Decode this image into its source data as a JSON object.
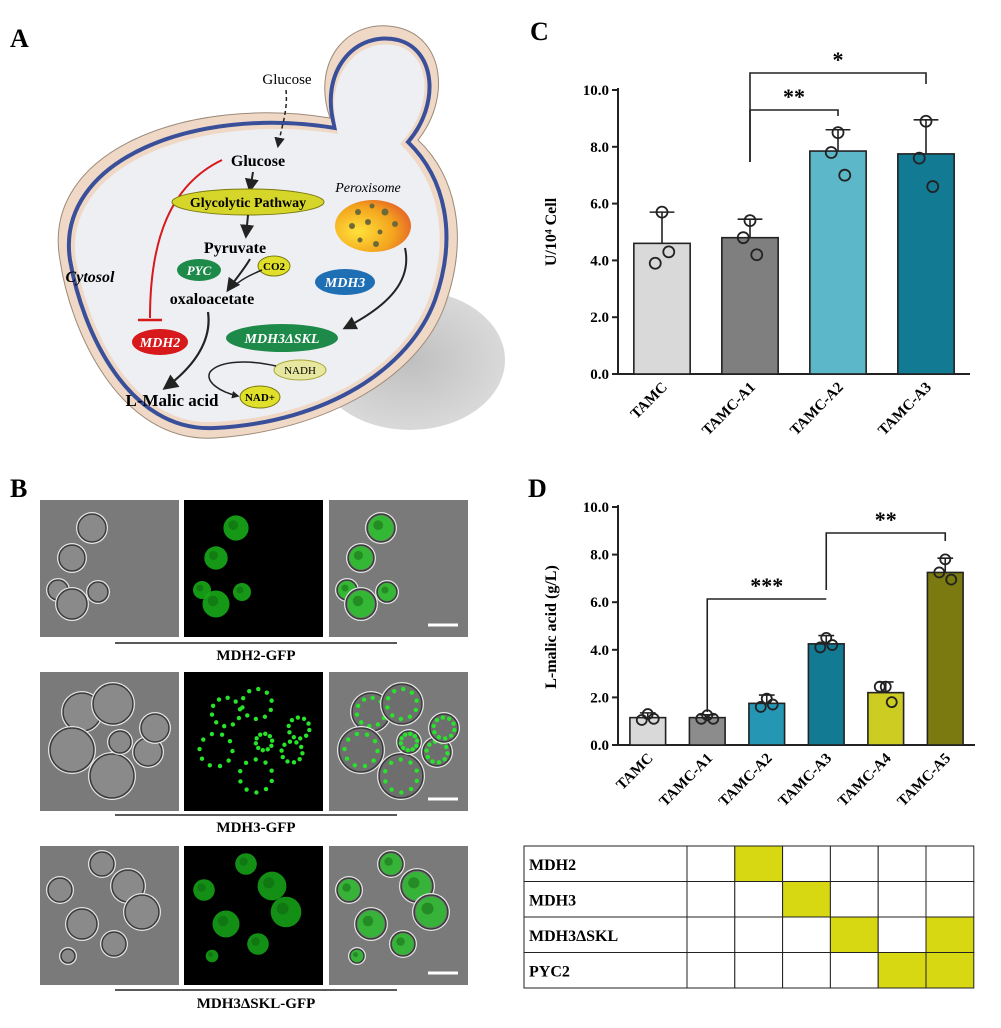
{
  "panels": {
    "a": {
      "letter": "A",
      "labels": {
        "glucose_outside": "Glucose",
        "glucose_inside": "Glucose",
        "glycolytic": "Glycolytic Pathway",
        "pyruvate": "Pyruvate",
        "pyc": "PYC",
        "co2": "CO2",
        "oxaloacetate": "oxaloacetate",
        "peroxisome": "Peroxisome",
        "mdh3": "MDH3",
        "mdh3dskl": "MDH3ΔSKL",
        "cytosol": "Cytosol",
        "mdh2": "MDH2",
        "nadh": "NADH",
        "nad": "NAD+",
        "malic": "L-Malic acid"
      },
      "colors": {
        "cell_fill": "#eeeff3",
        "wall_outer": "#efd9c6",
        "membrane": "#3a4f9a",
        "glycolytic_fill": "#d6d62a",
        "enzyme_green": "#1e8a4a",
        "enzyme_blue": "#1f6fb5",
        "enzyme_red": "#d7191c",
        "cofactor_fill": "#e0e02a",
        "inhibit_line": "#d7191c"
      }
    },
    "b": {
      "letter": "B",
      "rows": [
        {
          "label": "MDH2-GFP"
        },
        {
          "label": "MDH3-GFP"
        },
        {
          "label": "MDH3ΔSKL-GFP"
        }
      ]
    },
    "c": {
      "letter": "C",
      "chart_data": {
        "type": "bar",
        "categories": [
          "TAMC",
          "TAMC-A1",
          "TAMC-A2",
          "TAMC-A3"
        ],
        "values": [
          4.6,
          4.8,
          7.85,
          7.75
        ],
        "errors": [
          1.1,
          0.65,
          0.75,
          1.2
        ],
        "points": [
          [
            5.7,
            3.9,
            4.3
          ],
          [
            5.4,
            4.8,
            4.2
          ],
          [
            8.5,
            7.8,
            7.0
          ],
          [
            8.9,
            7.6,
            6.6
          ]
        ],
        "colors": [
          "#d9d9d9",
          "#7f7f7f",
          "#5cb8c8",
          "#137a94"
        ],
        "ylabel": "U/10⁴ Cell",
        "ylim": [
          0,
          10
        ],
        "yticks": [
          "0.0",
          "2.0",
          "4.0",
          "6.0",
          "8.0",
          "10.0"
        ],
        "significance": [
          {
            "from": 1,
            "to": 2,
            "label": "**"
          },
          {
            "from": 1,
            "to": 3,
            "label": "*"
          }
        ]
      }
    },
    "d": {
      "letter": "D",
      "chart_data": {
        "type": "bar",
        "categories": [
          "TAMC",
          "TAMC-A1",
          "TAMC-A2",
          "TAMC-A3",
          "TAMC-A4",
          "TAMC-A5"
        ],
        "values": [
          1.15,
          1.15,
          1.75,
          4.25,
          2.2,
          7.25
        ],
        "errors": [
          0.2,
          0.12,
          0.35,
          0.35,
          0.45,
          0.6
        ],
        "points": [
          [
            1.3,
            1.05,
            1.1
          ],
          [
            1.25,
            1.1,
            1.1
          ],
          [
            1.95,
            1.6,
            1.7
          ],
          [
            4.5,
            4.1,
            4.2
          ],
          [
            2.45,
            2.45,
            1.8
          ],
          [
            7.8,
            7.25,
            6.95
          ]
        ],
        "colors": [
          "#d9d9d9",
          "#8c8c8c",
          "#2596b4",
          "#137a94",
          "#cccc22",
          "#7a7a10"
        ],
        "ylabel": "L-malic acid (g/L)",
        "ylim": [
          0,
          10
        ],
        "yticks": [
          "0.0",
          "2.0",
          "4.0",
          "6.0",
          "8.0",
          "10.0"
        ],
        "significance": [
          {
            "from": 1,
            "to": 3,
            "label": "***"
          },
          {
            "from": 3,
            "to": 5,
            "label": "**"
          }
        ]
      },
      "table": {
        "rows": [
          {
            "label": "MDH2",
            "cells": [
              false,
              true,
              false,
              false,
              false,
              false
            ]
          },
          {
            "label": "MDH3",
            "cells": [
              false,
              false,
              true,
              false,
              false,
              false
            ]
          },
          {
            "label": "MDH3ΔSKL",
            "cells": [
              false,
              false,
              false,
              true,
              false,
              true
            ]
          },
          {
            "label": "PYC2",
            "cells": [
              false,
              false,
              false,
              false,
              true,
              true
            ]
          }
        ],
        "highlight": "#d8d812"
      }
    }
  }
}
